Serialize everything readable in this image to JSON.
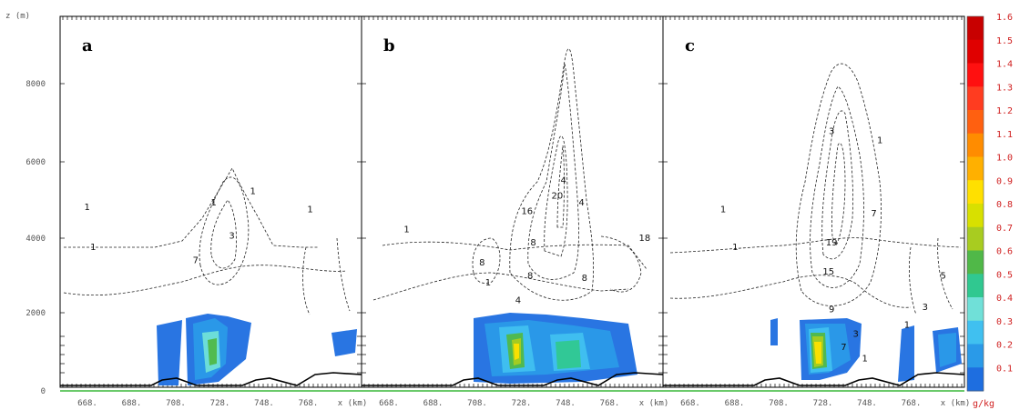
{
  "chart_data": {
    "type": "heatmap",
    "y_axis_label": "z (m)",
    "y_ticks": [
      "0",
      "2000",
      "4000",
      "6000",
      "8000"
    ],
    "colorbar": {
      "unit": "g/kg",
      "ticks": [
        "1.6",
        "1.5",
        "1.4",
        "1.3",
        "1.2",
        "1.1",
        "1.0",
        "0.9",
        "0.8",
        "0.7",
        "0.6",
        "0.5",
        "0.4",
        "0.3",
        "0.2",
        "0.1"
      ],
      "colors": [
        "#c80000",
        "#e00000",
        "#ff1010",
        "#ff3c20",
        "#ff6010",
        "#ff8c00",
        "#ffb000",
        "#ffe000",
        "#d8e000",
        "#a8cc20",
        "#50b848",
        "#30c890",
        "#70e0d8",
        "#40c0f0",
        "#2a9ae8",
        "#1e6ee0"
      ]
    },
    "panels": [
      {
        "label": "a",
        "x_ticks": [
          "668.",
          "688.",
          "708.",
          "728.",
          "748.",
          "768.",
          "x (km)"
        ],
        "contour_labels": [
          {
            "text": "1",
            "x": 0.08,
            "y": 0.42
          },
          {
            "text": "1",
            "x": 0.1,
            "y": 0.6
          },
          {
            "text": "1",
            "x": 0.5,
            "y": 0.4
          },
          {
            "text": "1",
            "x": 0.63,
            "y": 0.35
          },
          {
            "text": "7",
            "x": 0.44,
            "y": 0.66
          },
          {
            "text": "3",
            "x": 0.56,
            "y": 0.55
          },
          {
            "text": "1",
            "x": 0.82,
            "y": 0.43
          }
        ]
      },
      {
        "label": "b",
        "x_ticks": [
          "668.",
          "688.",
          "708.",
          "728.",
          "748.",
          "768.",
          "x (km)"
        ],
        "contour_labels": [
          {
            "text": "4",
            "x": 0.66,
            "y": 0.3
          },
          {
            "text": "20",
            "x": 0.63,
            "y": 0.37
          },
          {
            "text": "4",
            "x": 0.72,
            "y": 0.4
          },
          {
            "text": "16",
            "x": 0.53,
            "y": 0.44
          },
          {
            "text": "8",
            "x": 0.39,
            "y": 0.67
          },
          {
            "text": "8",
            "x": 0.56,
            "y": 0.58
          },
          {
            "text": "8",
            "x": 0.55,
            "y": 0.73
          },
          {
            "text": "8",
            "x": 0.73,
            "y": 0.74
          },
          {
            "text": "1",
            "x": 0.41,
            "y": 0.76
          },
          {
            "text": "18",
            "x": 0.92,
            "y": 0.56
          },
          {
            "text": "4",
            "x": 0.51,
            "y": 0.84
          },
          {
            "text": "1",
            "x": 0.14,
            "y": 0.52
          }
        ]
      },
      {
        "label": "c",
        "x_ticks": [
          "668.",
          "688.",
          "708.",
          "728.",
          "748.",
          "768.",
          "x (km)"
        ],
        "contour_labels": [
          {
            "text": "1",
            "x": 0.19,
            "y": 0.43
          },
          {
            "text": "1",
            "x": 0.23,
            "y": 0.6
          },
          {
            "text": "3",
            "x": 0.55,
            "y": 0.08
          },
          {
            "text": "1",
            "x": 0.71,
            "y": 0.12
          },
          {
            "text": "7",
            "x": 0.69,
            "y": 0.45
          },
          {
            "text": "19",
            "x": 0.54,
            "y": 0.58
          },
          {
            "text": "15",
            "x": 0.53,
            "y": 0.71
          },
          {
            "text": "9",
            "x": 0.55,
            "y": 0.88
          },
          {
            "text": "7",
            "x": 0.59,
            "y": 1.05
          },
          {
            "text": "3",
            "x": 0.63,
            "y": 0.99
          },
          {
            "text": "1",
            "x": 0.66,
            "y": 1.1
          },
          {
            "text": "1",
            "x": 0.8,
            "y": 0.95
          },
          {
            "text": "5",
            "x": 0.92,
            "y": 0.73
          },
          {
            "text": "3",
            "x": 0.86,
            "y": 0.87
          }
        ]
      }
    ]
  }
}
